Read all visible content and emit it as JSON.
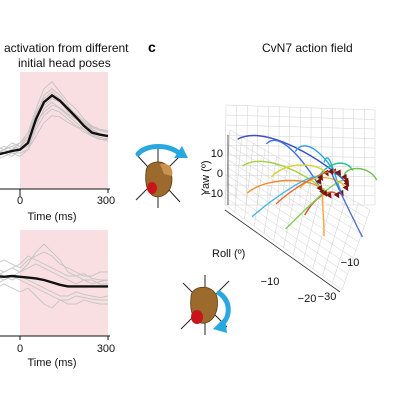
{
  "header": {
    "left_title_line1": "activation from different",
    "left_title_line2": "initial head poses",
    "panel_letter": "c",
    "right_title": "CvN7 action field"
  },
  "colors": {
    "shade": "#f9dfe1",
    "mean_line": "#111111",
    "trial_line": "#c4c4c4",
    "arrow": "#7a1414",
    "rotation_arrow": "#29a8e0",
    "head_model": "#9b6a2c",
    "eye_marker": "#c8141c",
    "grid": "#cfcfcf"
  },
  "icons": [
    "head-pose-yaw-icon",
    "head-pose-roll-icon"
  ],
  "chart_data": [
    {
      "type": "line",
      "title": "activation from different initial head poses",
      "xlabel": "Time (ms)",
      "x_tick_labels": [
        "0",
        "300"
      ],
      "shaded_interval": [
        0,
        300
      ],
      "x": [
        -180,
        -150,
        -120,
        -90,
        -60,
        -30,
        0,
        30,
        60,
        90,
        120,
        150,
        180,
        210,
        240,
        270,
        300
      ],
      "series": [
        {
          "role": "mean",
          "values": [
            0.0,
            0.0,
            0.02,
            0.05,
            0.08,
            0.1,
            0.2,
            0.55,
            0.8,
            0.9,
            0.82,
            0.7,
            0.58,
            0.45,
            0.35,
            0.32,
            0.3
          ]
        },
        {
          "role": "trial",
          "values": [
            0.1,
            0.05,
            0.1,
            0.15,
            0.1,
            0.2,
            0.35,
            0.7,
            1.0,
            1.1,
            0.95,
            0.8,
            0.7,
            0.55,
            0.45,
            0.4,
            0.35
          ]
        },
        {
          "role": "trial",
          "values": [
            -0.05,
            0.0,
            -0.05,
            0.0,
            0.05,
            0.05,
            0.1,
            0.4,
            0.6,
            0.7,
            0.65,
            0.55,
            0.45,
            0.4,
            0.3,
            0.25,
            0.25
          ]
        },
        {
          "role": "trial",
          "values": [
            0.2,
            0.25,
            0.15,
            0.1,
            0.15,
            0.2,
            0.3,
            0.6,
            0.9,
            1.0,
            0.9,
            0.75,
            0.6,
            0.5,
            0.42,
            0.38,
            0.36
          ]
        },
        {
          "role": "trial",
          "values": [
            -0.1,
            -0.05,
            0.0,
            0.05,
            0.0,
            0.1,
            0.15,
            0.45,
            0.7,
            0.8,
            0.7,
            0.6,
            0.5,
            0.4,
            0.32,
            0.28,
            0.26
          ]
        },
        {
          "role": "trial",
          "values": [
            0.05,
            0.1,
            0.15,
            0.1,
            0.2,
            0.15,
            0.25,
            0.5,
            0.65,
            0.75,
            0.72,
            0.62,
            0.55,
            0.48,
            0.4,
            0.34,
            0.3
          ]
        },
        {
          "role": "trial",
          "values": [
            0.0,
            -0.05,
            0.05,
            0.1,
            0.05,
            0.0,
            0.1,
            0.3,
            0.5,
            0.6,
            0.58,
            0.5,
            0.44,
            0.36,
            0.3,
            0.26,
            0.22
          ]
        },
        {
          "role": "trial",
          "values": [
            0.15,
            0.2,
            0.1,
            0.05,
            0.1,
            0.15,
            0.3,
            0.65,
            0.85,
            0.95,
            0.85,
            0.72,
            0.62,
            0.52,
            0.44,
            0.4,
            0.38
          ]
        },
        {
          "role": "trial",
          "values": [
            -0.05,
            0.05,
            0.0,
            0.1,
            0.15,
            0.1,
            0.2,
            0.55,
            0.75,
            0.85,
            0.8,
            0.66,
            0.56,
            0.46,
            0.38,
            0.34,
            0.3
          ]
        }
      ]
    },
    {
      "type": "line",
      "xlabel": "Time (ms)",
      "x_tick_labels": [
        "0",
        "300"
      ],
      "shaded_interval": [
        0,
        300
      ],
      "x": [
        -180,
        -150,
        -120,
        -90,
        -60,
        -30,
        0,
        30,
        60,
        90,
        120,
        150,
        180,
        210,
        240,
        270,
        300
      ],
      "series": [
        {
          "role": "mean",
          "values": [
            0.05,
            0.05,
            0.05,
            0.04,
            0.05,
            0.04,
            0.03,
            0.02,
            0.0,
            -0.03,
            -0.06,
            -0.08,
            -0.08,
            -0.08,
            -0.08,
            -0.08,
            -0.08
          ]
        },
        {
          "role": "trial",
          "values": [
            0.2,
            0.15,
            0.2,
            0.25,
            0.2,
            0.15,
            0.25,
            0.3,
            0.35,
            0.3,
            0.2,
            0.15,
            0.1,
            0.05,
            0.05,
            0.1,
            0.1
          ]
        },
        {
          "role": "trial",
          "values": [
            -0.1,
            -0.15,
            -0.1,
            -0.05,
            -0.1,
            -0.15,
            -0.1,
            -0.2,
            -0.3,
            -0.35,
            -0.25,
            -0.3,
            -0.3,
            -0.25,
            -0.28,
            -0.3,
            -0.3
          ]
        },
        {
          "role": "trial",
          "values": [
            0.1,
            0.1,
            0.05,
            0.1,
            0.15,
            0.1,
            0.15,
            0.2,
            0.15,
            0.1,
            0.05,
            0.0,
            -0.05,
            0.0,
            0.0,
            -0.05,
            -0.05
          ]
        },
        {
          "role": "trial",
          "values": [
            0.0,
            0.05,
            0.1,
            0.05,
            0.0,
            0.05,
            0.0,
            -0.05,
            -0.1,
            -0.15,
            -0.2,
            -0.2,
            -0.15,
            -0.18,
            -0.2,
            -0.22,
            -0.2
          ]
        },
        {
          "role": "trial",
          "values": [
            0.15,
            0.2,
            0.15,
            0.1,
            0.15,
            0.2,
            0.3,
            0.25,
            0.2,
            0.15,
            0.1,
            0.05,
            0.05,
            0.0,
            -0.05,
            -0.02,
            0.0
          ]
        },
        {
          "role": "trial",
          "values": [
            -0.05,
            0.0,
            -0.05,
            0.0,
            0.05,
            0.0,
            -0.05,
            -0.1,
            -0.15,
            -0.2,
            -0.25,
            -0.25,
            -0.2,
            -0.22,
            -0.24,
            -0.25,
            -0.25
          ]
        },
        {
          "role": "trial",
          "values": [
            0.05,
            0.1,
            0.05,
            0.0,
            0.05,
            0.1,
            0.2,
            0.35,
            0.45,
            0.35,
            0.25,
            0.1,
            0.05,
            0.08,
            0.02,
            0.0,
            0.0
          ]
        }
      ]
    },
    {
      "type": "line",
      "title": "CvN7 action field",
      "ylabel": "Yaw (º)",
      "xlabel": "Roll (º)",
      "yaw_tick_labels": [
        "10",
        "0",
        "−10"
      ],
      "roll_tick_labels": [
        "−10",
        "−20",
        "−30"
      ],
      "third_axis_tick_labels": [
        "−10"
      ],
      "grid": true,
      "endpoint_cluster": {
        "roll": -22,
        "yaw": 6
      },
      "series": [
        {
          "color": "#3b4cc0",
          "start": {
            "roll": -2,
            "yaw": 12
          }
        },
        {
          "color": "#3f6fd8",
          "start": {
            "roll": -8,
            "yaw": 13
          }
        },
        {
          "color": "#2a9df4",
          "start": {
            "roll": -14,
            "yaw": 13
          }
        },
        {
          "color": "#19b6c9",
          "start": {
            "roll": -20,
            "yaw": 12
          }
        },
        {
          "color": "#23c08f",
          "start": {
            "roll": -26,
            "yaw": 12
          }
        },
        {
          "color": "#6cc24a",
          "start": {
            "roll": -31,
            "yaw": 11
          }
        },
        {
          "color": "#a5cf3a",
          "start": {
            "roll": -3,
            "yaw": 4
          }
        },
        {
          "color": "#d8d431",
          "start": {
            "roll": -9,
            "yaw": 3
          }
        },
        {
          "color": "#f2b632",
          "start": {
            "roll": -15,
            "yaw": 2
          }
        },
        {
          "color": "#f28a2e",
          "start": {
            "roll": -4,
            "yaw": -4
          }
        },
        {
          "color": "#ea6a2f",
          "start": {
            "roll": -10,
            "yaw": -5
          }
        },
        {
          "color": "#d64b2a",
          "start": {
            "roll": -16,
            "yaw": -6
          }
        },
        {
          "color": "#3fb8e5",
          "start": {
            "roll": -5,
            "yaw": -11
          }
        },
        {
          "color": "#7fcf5a",
          "start": {
            "roll": -12,
            "yaw": -12
          }
        },
        {
          "color": "#f1a93a",
          "start": {
            "roll": -20,
            "yaw": -11
          }
        },
        {
          "color": "#4e6fd5",
          "start": {
            "roll": -28,
            "yaw": -8
          }
        }
      ]
    }
  ]
}
